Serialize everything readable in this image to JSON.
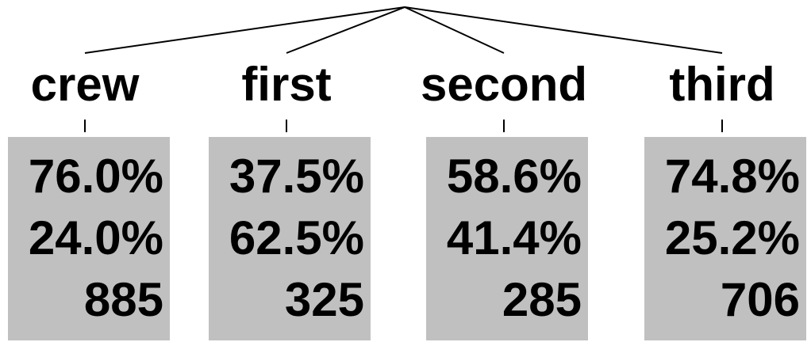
{
  "nodes": [
    {
      "label": "crew",
      "pct_a": "76.0%",
      "pct_b": "24.0%",
      "count": "885"
    },
    {
      "label": "first",
      "pct_a": "37.5%",
      "pct_b": "62.5%",
      "count": "325"
    },
    {
      "label": "second",
      "pct_a": "58.6%",
      "pct_b": "41.4%",
      "count": "285"
    },
    {
      "label": "third",
      "pct_a": "74.8%",
      "pct_b": "25.2%",
      "count": "706"
    }
  ],
  "colors": {
    "box_fill": "#c0c0c0",
    "line": "#000000",
    "text": "#000000"
  }
}
